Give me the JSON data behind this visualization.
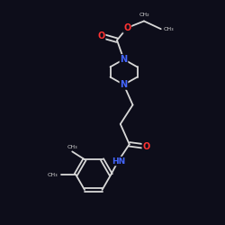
{
  "background_color": "#0d0d1a",
  "bond_color": "#d8d8d8",
  "N_color": "#4466ff",
  "O_color": "#ff3333",
  "figsize": [
    2.5,
    2.5
  ],
  "dpi": 100,
  "xlim": [
    0,
    10
  ],
  "ylim": [
    0,
    10
  ]
}
